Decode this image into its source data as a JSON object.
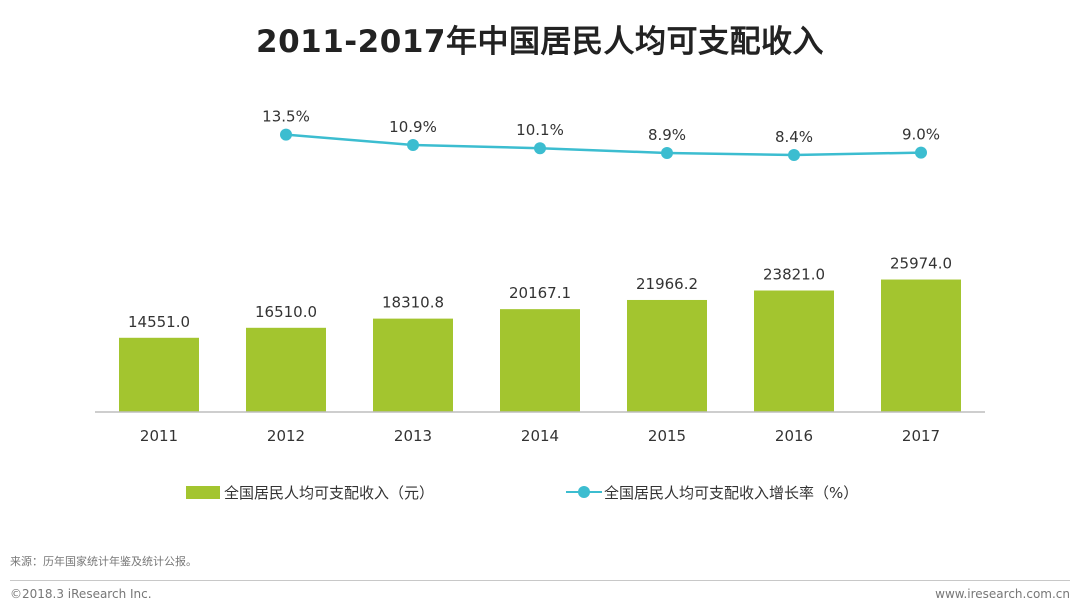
{
  "title": "2011-2017年中国居民人均可支配收入",
  "colors": {
    "bar": "#a3c52f",
    "line": "#3cbdd0",
    "axis": "#bdbdbd",
    "text": "#333333"
  },
  "chart_data": {
    "type": "bar",
    "categories": [
      "2011",
      "2012",
      "2013",
      "2014",
      "2015",
      "2016",
      "2017"
    ],
    "series": [
      {
        "name": "全国居民人均可支配收入（元）",
        "type": "bar",
        "values": [
          14551.0,
          16510.0,
          18310.8,
          20167.1,
          21966.2,
          23821.0,
          25974.0
        ],
        "labels": [
          "14551.0",
          "16510.0",
          "18310.8",
          "20167.1",
          "21966.2",
          "23821.0",
          "25974.0"
        ]
      },
      {
        "name": "全国居民人均可支配收入增长率（%）",
        "type": "line",
        "x": [
          "2012",
          "2013",
          "2014",
          "2015",
          "2016",
          "2017"
        ],
        "values": [
          13.5,
          10.9,
          10.1,
          8.9,
          8.4,
          9.0
        ],
        "labels": [
          "13.5%",
          "10.9%",
          "10.1%",
          "8.9%",
          "8.4%",
          "9.0%"
        ]
      }
    ],
    "legend_position": "bottom",
    "grid": false
  },
  "legend": {
    "bar_label": "全国居民人均可支配收入（元）",
    "line_label": "全国居民人均可支配收入增长率（%）"
  },
  "footer": {
    "source": "来源：历年国家统计年鉴及统计公报。",
    "copyright": "©2018.3 iResearch Inc.",
    "website": "www.iresearch.com.cn"
  }
}
